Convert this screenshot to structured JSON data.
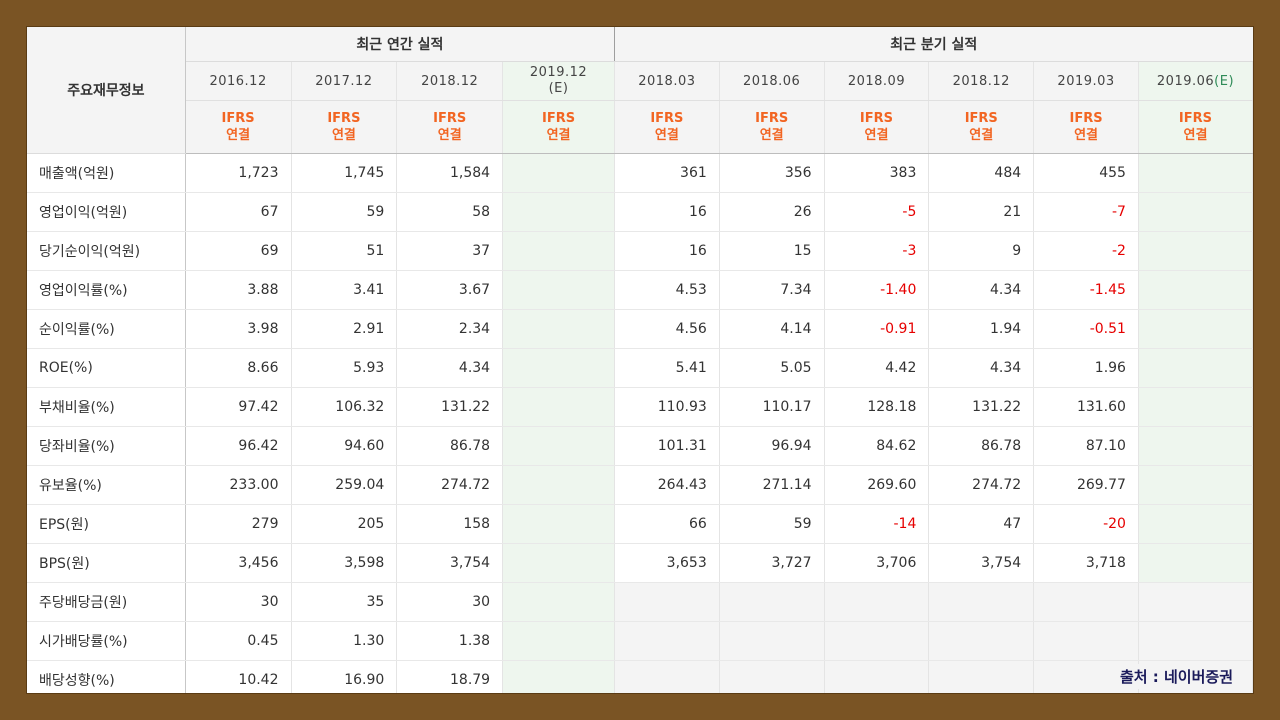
{
  "header": {
    "row_label": "주요재무정보",
    "annual_title": "최근 연간 실적",
    "quarter_title": "최근 분기 실적",
    "annual_periods": [
      "2016.12",
      "2017.12",
      "2018.12"
    ],
    "annual_est": {
      "period": "2019.12",
      "tag": "(E)"
    },
    "quarter_periods": [
      "2018.03",
      "2018.06",
      "2018.09",
      "2018.12",
      "2019.03"
    ],
    "quarter_est": {
      "period": "2019.06",
      "tag": "(E)"
    },
    "ifrs_line1": "IFRS",
    "ifrs_line2": "연결"
  },
  "rows": [
    {
      "label": "매출액(억원)",
      "annual": [
        "1,723",
        "1,745",
        "1,584"
      ],
      "quarter": [
        "361",
        "356",
        "383",
        "484",
        "455"
      ]
    },
    {
      "label": "영업이익(억원)",
      "annual": [
        "67",
        "59",
        "58"
      ],
      "quarter": [
        "16",
        "26",
        "-5",
        "21",
        "-7"
      ]
    },
    {
      "label": "당기순이익(억원)",
      "annual": [
        "69",
        "51",
        "37"
      ],
      "quarter": [
        "16",
        "15",
        "-3",
        "9",
        "-2"
      ]
    },
    {
      "label": "영업이익률(%)",
      "annual": [
        "3.88",
        "3.41",
        "3.67"
      ],
      "quarter": [
        "4.53",
        "7.34",
        "-1.40",
        "4.34",
        "-1.45"
      ]
    },
    {
      "label": "순이익률(%)",
      "annual": [
        "3.98",
        "2.91",
        "2.34"
      ],
      "quarter": [
        "4.56",
        "4.14",
        "-0.91",
        "1.94",
        "-0.51"
      ]
    },
    {
      "label": "ROE(%)",
      "annual": [
        "8.66",
        "5.93",
        "4.34"
      ],
      "quarter": [
        "5.41",
        "5.05",
        "4.42",
        "4.34",
        "1.96"
      ]
    },
    {
      "label": "부채비율(%)",
      "annual": [
        "97.42",
        "106.32",
        "131.22"
      ],
      "quarter": [
        "110.93",
        "110.17",
        "128.18",
        "131.22",
        "131.60"
      ]
    },
    {
      "label": "당좌비율(%)",
      "annual": [
        "96.42",
        "94.60",
        "86.78"
      ],
      "quarter": [
        "101.31",
        "96.94",
        "84.62",
        "86.78",
        "87.10"
      ]
    },
    {
      "label": "유보율(%)",
      "annual": [
        "233.00",
        "259.04",
        "274.72"
      ],
      "quarter": [
        "264.43",
        "271.14",
        "269.60",
        "274.72",
        "269.77"
      ]
    },
    {
      "label": "EPS(원)",
      "annual": [
        "279",
        "205",
        "158"
      ],
      "quarter": [
        "66",
        "59",
        "-14",
        "47",
        "-20"
      ]
    },
    {
      "label": "BPS(원)",
      "annual": [
        "3,456",
        "3,598",
        "3,754"
      ],
      "quarter": [
        "3,653",
        "3,727",
        "3,706",
        "3,754",
        "3,718"
      ]
    },
    {
      "label": "주당배당금(원)",
      "annual": [
        "30",
        "35",
        "30"
      ],
      "quarter": [
        "",
        "",
        "",
        "",
        ""
      ]
    },
    {
      "label": "시가배당률(%)",
      "annual": [
        "0.45",
        "1.30",
        "1.38"
      ],
      "quarter": [
        "",
        "",
        "",
        "",
        ""
      ]
    },
    {
      "label": "배당성향(%)",
      "annual": [
        "10.42",
        "16.90",
        "18.79"
      ],
      "quarter": [
        "",
        "",
        "",
        "",
        ""
      ]
    }
  ],
  "group_starts": [
    0,
    3,
    6,
    9,
    11
  ],
  "source": "출처 : 네이버증권"
}
